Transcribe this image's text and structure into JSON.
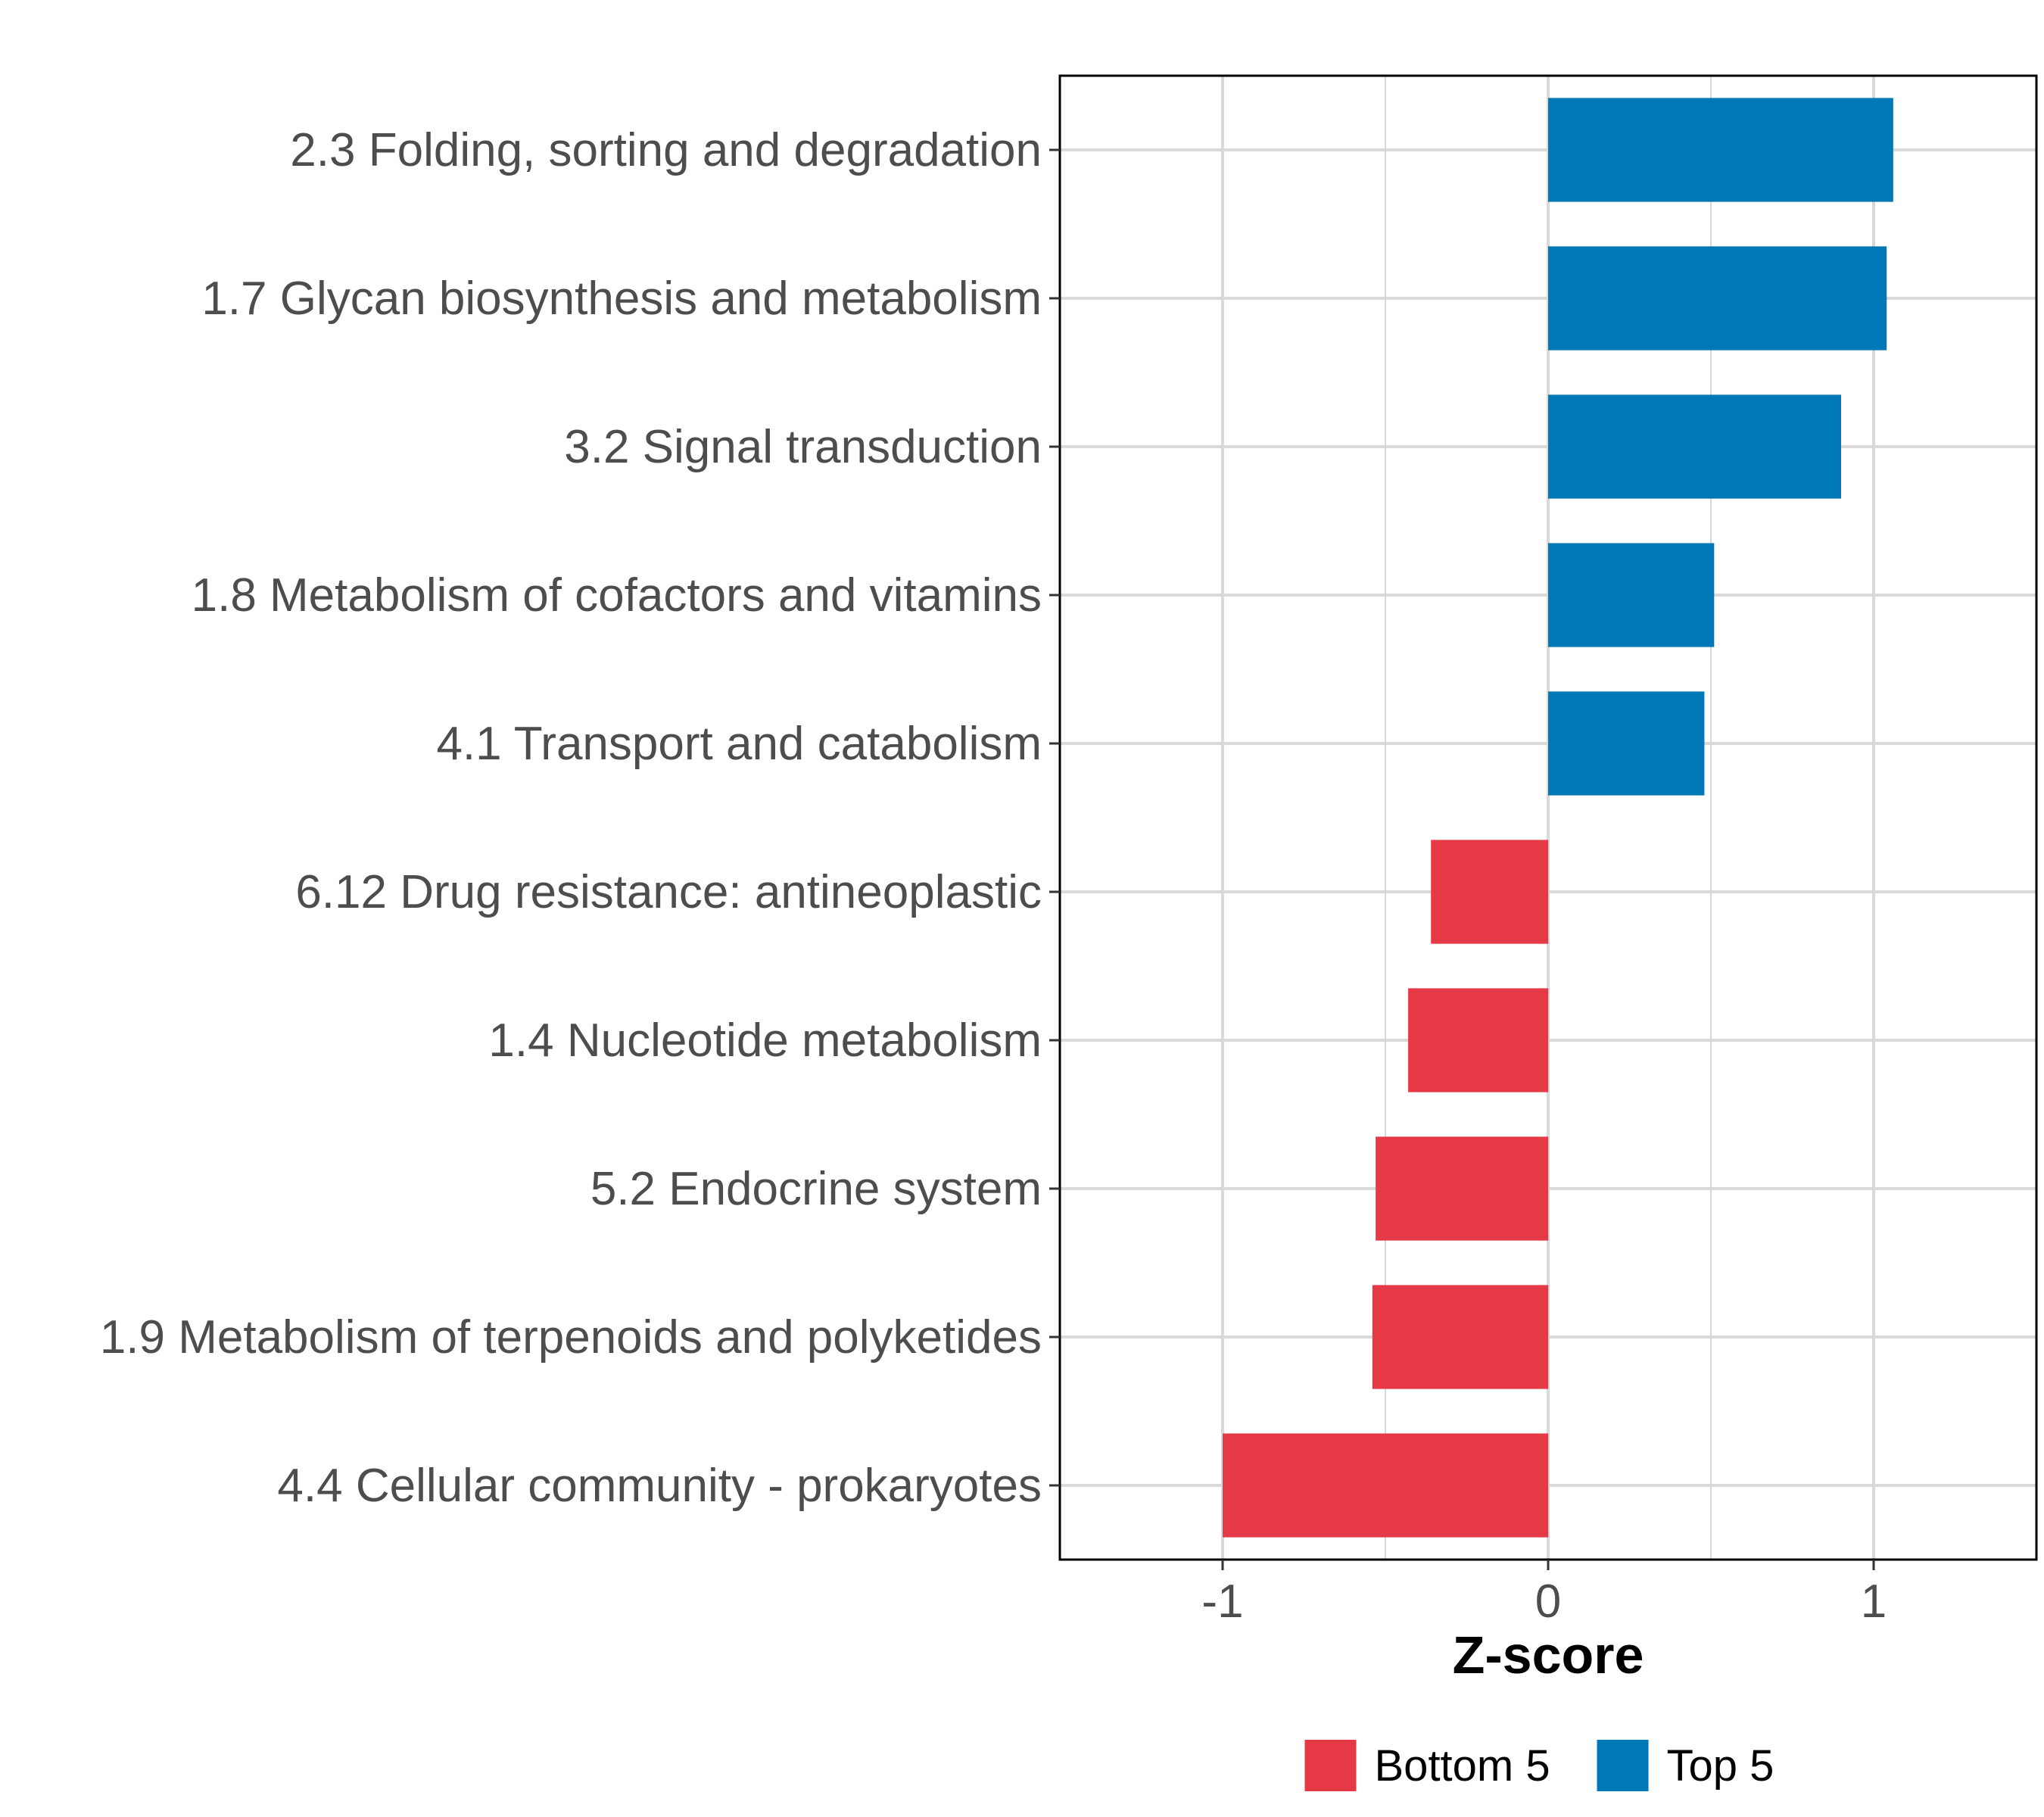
{
  "chart_data": {
    "type": "bar",
    "orientation": "horizontal",
    "categories": [
      "2.3 Folding, sorting and degradation",
      "1.7 Glycan biosynthesis and metabolism",
      "3.2 Signal transduction",
      "1.8 Metabolism of cofactors and vitamins",
      "4.1 Transport and catabolism",
      "6.12 Drug resistance: antineoplastic",
      "1.4 Nucleotide metabolism",
      "5.2 Endocrine system",
      "1.9 Metabolism of terpenoids and polyketides",
      "4.4 Cellular community - prokaryotes"
    ],
    "values": [
      1.06,
      1.04,
      0.9,
      0.51,
      0.48,
      -0.36,
      -0.43,
      -0.53,
      -0.54,
      -1.0
    ],
    "groups": [
      "Top 5",
      "Top 5",
      "Top 5",
      "Top 5",
      "Top 5",
      "Bottom 5",
      "Bottom 5",
      "Bottom 5",
      "Bottom 5",
      "Bottom 5"
    ],
    "xlabel": "Z-score",
    "ylabel": "",
    "xlim": [
      -1.5,
      1.5
    ],
    "xticks": [
      -1,
      0,
      1
    ],
    "xtick_labels": [
      "-1",
      "0",
      "1"
    ],
    "grid": true,
    "legend": {
      "position": "bottom",
      "entries": [
        {
          "label": "Bottom 5",
          "color": "#e63946"
        },
        {
          "label": "Top 5",
          "color": "#0077b6"
        }
      ]
    },
    "colors": {
      "Top 5": "#0077b6",
      "Bottom 5": "#e63946"
    }
  }
}
